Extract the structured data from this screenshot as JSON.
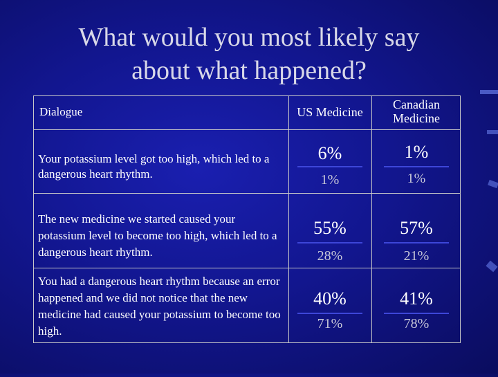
{
  "slide": {
    "title_line1": "What would you most likely say",
    "title_line2": "about what happened?"
  },
  "table": {
    "headers": {
      "dialogue": "Dialogue",
      "us": "US Medicine",
      "canadian_line1": "Canadian",
      "canadian_line2": "Medicine"
    },
    "rows": [
      {
        "dialogue": "Your potassium level got too high, which led to a dangerous heart rhythm.",
        "us_top": "6%",
        "us_bottom": "1%",
        "ca_top": "1%",
        "ca_bottom": "1%"
      },
      {
        "dialogue": "The new medicine we started caused your potassium level to become too high, which led to a dangerous heart rhythm.",
        "us_top": "55%",
        "us_bottom": "28%",
        "ca_top": "57%",
        "ca_bottom": "21%"
      },
      {
        "dialogue": "You had a dangerous heart rhythm because an error happened and we did not notice that the new medicine had caused your potassium to become too high.",
        "us_top": "40%",
        "us_bottom": "71%",
        "ca_top": "41%",
        "ca_bottom": "78%"
      }
    ]
  },
  "colors": {
    "background": "#12168f",
    "separator": "#3d46d8",
    "title": "#d8d8e8"
  }
}
